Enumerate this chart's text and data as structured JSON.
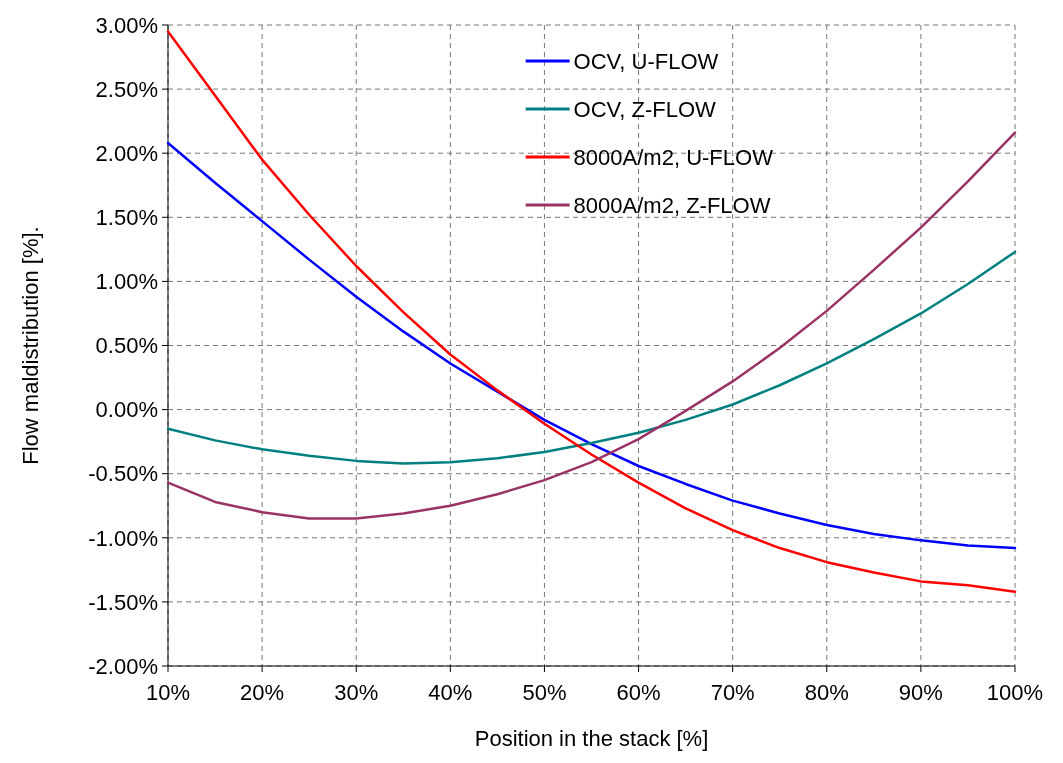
{
  "chart_data": {
    "type": "line",
    "xlabel": "Position in the stack [%]",
    "ylabel": "Flow maldistribution [%].",
    "x": [
      10,
      15,
      20,
      25,
      30,
      35,
      40,
      45,
      50,
      55,
      60,
      65,
      70,
      75,
      80,
      85,
      90,
      95,
      100
    ],
    "series": [
      {
        "name": "OCV, U-FLOW",
        "color": "#0000ff",
        "values": [
          2.08,
          1.77,
          1.47,
          1.17,
          0.88,
          0.61,
          0.36,
          0.14,
          -0.08,
          -0.27,
          -0.44,
          -0.58,
          -0.71,
          -0.81,
          -0.9,
          -0.97,
          -1.02,
          -1.06,
          -1.08
        ]
      },
      {
        "name": "OCV, Z-FLOW",
        "color": "#008080",
        "values": [
          -0.15,
          -0.24,
          -0.31,
          -0.36,
          -0.4,
          -0.42,
          -0.41,
          -0.38,
          -0.33,
          -0.26,
          -0.18,
          -0.08,
          0.04,
          0.19,
          0.36,
          0.55,
          0.75,
          0.98,
          1.23
        ]
      },
      {
        "name": "8000A/m2, U-FLOW",
        "color": "#ff0000",
        "values": [
          2.95,
          2.45,
          1.95,
          1.52,
          1.12,
          0.76,
          0.43,
          0.15,
          -0.11,
          -0.35,
          -0.57,
          -0.77,
          -0.94,
          -1.08,
          -1.19,
          -1.27,
          -1.34,
          -1.37,
          -1.42
        ]
      },
      {
        "name": "8000A/m2, Z-FLOW",
        "color": "#993366",
        "values": [
          -0.57,
          -0.72,
          -0.8,
          -0.85,
          -0.85,
          -0.81,
          -0.75,
          -0.66,
          -0.55,
          -0.41,
          -0.23,
          -0.01,
          0.22,
          0.48,
          0.77,
          1.09,
          1.42,
          1.78,
          2.16
        ]
      }
    ],
    "xlim": [
      10,
      100
    ],
    "xticks": [
      {
        "value": 10,
        "label": "10%"
      },
      {
        "value": 20,
        "label": "20%"
      },
      {
        "value": 30,
        "label": "30%"
      },
      {
        "value": 40,
        "label": "40%"
      },
      {
        "value": 50,
        "label": "50%"
      },
      {
        "value": 60,
        "label": "60%"
      },
      {
        "value": 70,
        "label": "70%"
      },
      {
        "value": 80,
        "label": "80%"
      },
      {
        "value": 90,
        "label": "90%"
      },
      {
        "value": 100,
        "label": "100%"
      }
    ],
    "ylim": [
      -2,
      3
    ],
    "yticks": [
      {
        "value": -2,
        "label": "-2.00%"
      },
      {
        "value": -1.5,
        "label": "-1.50%"
      },
      {
        "value": -1,
        "label": "-1.00%"
      },
      {
        "value": -0.5,
        "label": "-0.50%"
      },
      {
        "value": 0,
        "label": "0.00%"
      },
      {
        "value": 0.5,
        "label": "0.50%"
      },
      {
        "value": 1,
        "label": "1.00%"
      },
      {
        "value": 1.5,
        "label": "1.50%"
      },
      {
        "value": 2,
        "label": "2.00%"
      },
      {
        "value": 2.5,
        "label": "2.50%"
      },
      {
        "value": 3,
        "label": "3.00%"
      }
    ],
    "grid": true,
    "legend": "top right",
    "line_style": "solid",
    "marker": "none"
  }
}
